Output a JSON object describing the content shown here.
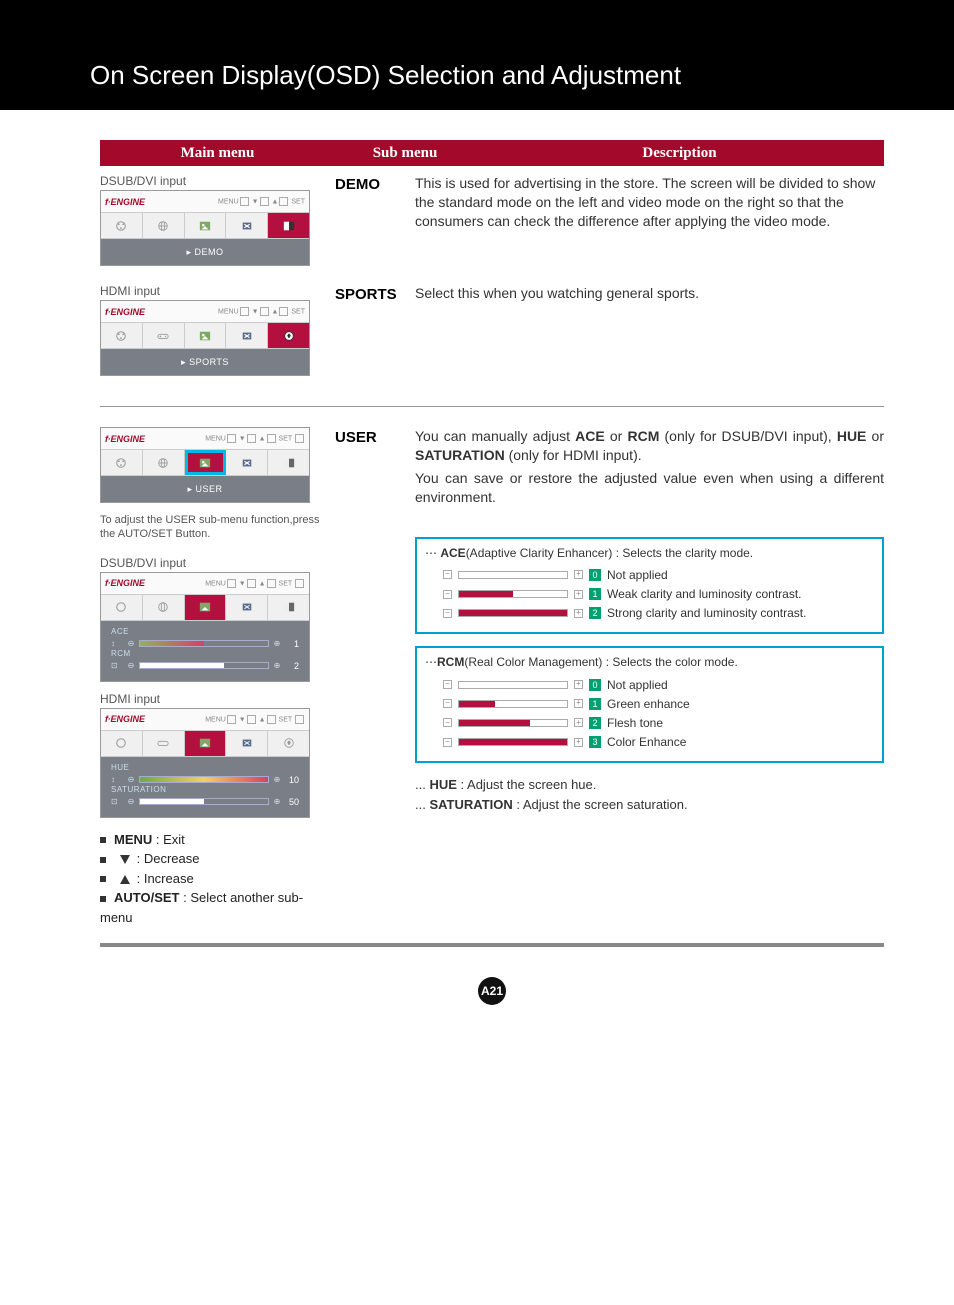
{
  "title": "On Screen Display(OSD) Selection and Adjustment",
  "header": {
    "c1": "Main menu",
    "c2": "Sub menu",
    "c3": "Description"
  },
  "labels": {
    "dsub": "DSUB/DVI input",
    "hdmi": "HDMI input",
    "engine": "f∙ENGINE",
    "menu": "MENU",
    "set": "SET"
  },
  "demo": {
    "sub": "DEMO",
    "footer": "▸ DEMO",
    "desc": "This is used for advertising in the store. The screen will be divided to show the standard mode on the left and video mode on the right so that the consumers can check the difference after applying the video mode."
  },
  "sports": {
    "sub": "SPORTS",
    "footer": "▸ SPORTS",
    "desc": "Select this when you watching general sports."
  },
  "user": {
    "sub": "USER",
    "footer": "▸ USER",
    "note": "To adjust the USER sub-menu function,press the AUTO/SET Button.",
    "desc1_a": "You can manually adjust ",
    "desc1_ace": "ACE",
    "desc1_b": " or ",
    "desc1_rcm": "RCM",
    "desc1_c": " (only for DSUB/DVI input), ",
    "desc1_hue": "HUE",
    "desc1_d": " or ",
    "desc1_sat": "SATURATION",
    "desc1_e": " (only for HDMI input).",
    "desc2": "You can save or restore the adjusted value even when using a different environment.",
    "sliders": {
      "ace_label": "ACE",
      "ace_val": "1",
      "rcm_label": "RCM",
      "rcm_val": "2",
      "hue_label": "HUE",
      "hue_val": "10",
      "sat_label": "SATURATION",
      "sat_val": "50"
    }
  },
  "ace": {
    "head_bold": "ACE",
    "head_rest": "(Adaptive Clarity Enhancer) : Selects the clarity mode.",
    "rows": [
      {
        "n": "0",
        "fill": "0%",
        "color": "#ffffff",
        "text": "Not applied"
      },
      {
        "n": "1",
        "fill": "50%",
        "color": "#b31040",
        "text": "Weak clarity and luminosity contrast."
      },
      {
        "n": "2",
        "fill": "100%",
        "color": "#b31040",
        "text": "Strong clarity and luminosity contrast."
      }
    ]
  },
  "rcm": {
    "head_bold": "RCM",
    "head_rest": "(Real Color Management) : Selects the color mode.",
    "rows": [
      {
        "n": "0",
        "fill": "0%",
        "color": "#ffffff",
        "text": "Not applied"
      },
      {
        "n": "1",
        "fill": "33%",
        "color": "#b31040",
        "text": "Green enhance"
      },
      {
        "n": "2",
        "fill": "66%",
        "color": "#b31040",
        "text": "Flesh tone"
      },
      {
        "n": "3",
        "fill": "100%",
        "color": "#b31040",
        "text": "Color Enhance"
      }
    ]
  },
  "hue_sat": {
    "hue_b": "HUE",
    "hue_t": " : Adjust the screen hue.",
    "sat_b": "SATURATION",
    "sat_t": " : Adjust the screen saturation."
  },
  "legend": {
    "menu_b": "MENU",
    "menu_t": " : Exit",
    "dec": " : Decrease",
    "inc": " : Increase",
    "auto_b": "AUTO/SET",
    "auto_t": " : Select another sub-menu"
  },
  "page_num": "A21",
  "colors": {
    "accent": "#a2092a",
    "cyan_border": "#00a0d0",
    "panel_bg": "#7a7e86",
    "green_num": "#00a070"
  }
}
